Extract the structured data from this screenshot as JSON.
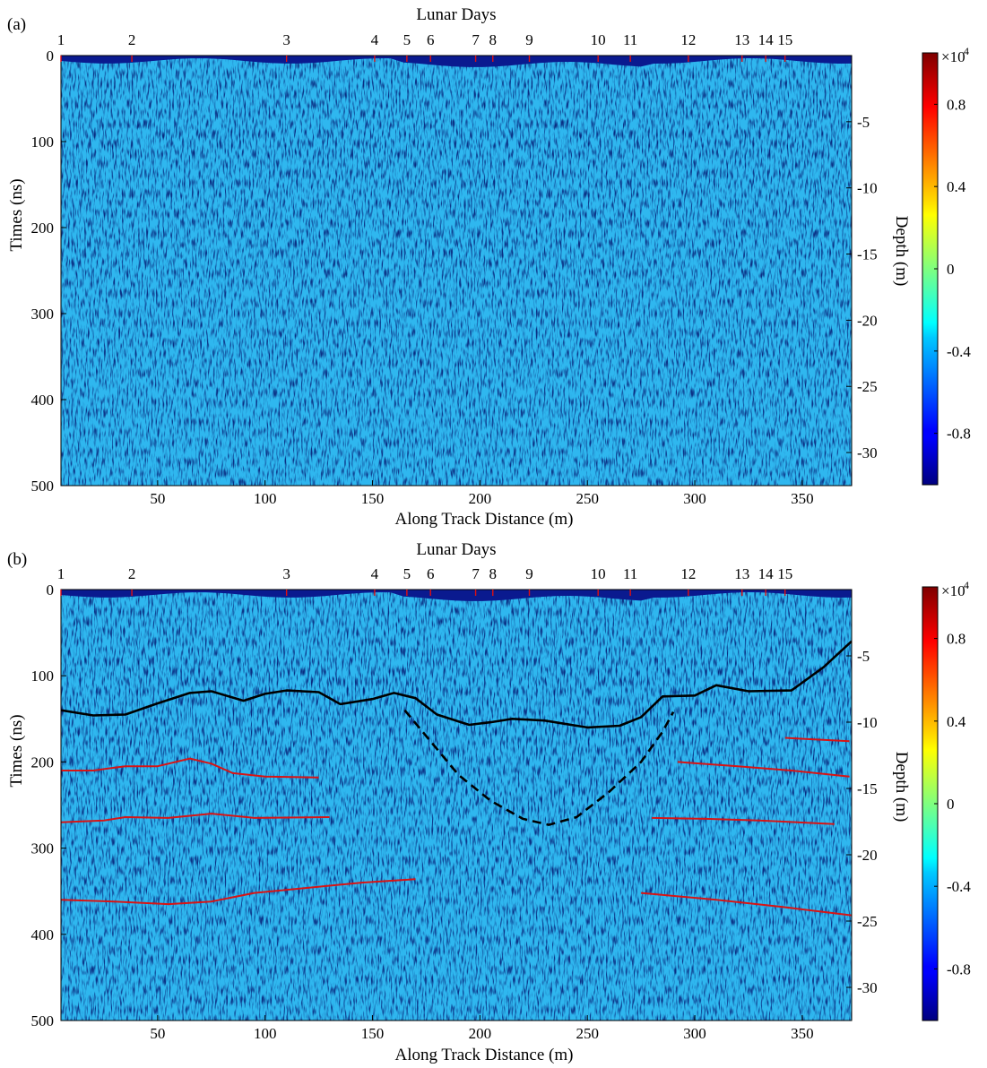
{
  "chart_data": [
    {
      "type": "heatmap",
      "panel_label": "(a)",
      "title": "",
      "top_axis_label": "Lunar Days",
      "xlabel": "Along Track Distance (m)",
      "ylabel": "Times (ns)",
      "right_axis_label": "Depth (m)",
      "xlim": [
        5,
        373
      ],
      "ylim": [
        0,
        500
      ],
      "depth_lim": [
        0,
        32.5
      ],
      "x_ticks": [
        50,
        100,
        150,
        200,
        250,
        300,
        350
      ],
      "y_ticks": [
        0,
        100,
        200,
        300,
        400,
        500
      ],
      "depth_ticks": [
        -5,
        -10,
        -15,
        -20,
        -25,
        -30
      ],
      "lunar_days": [
        {
          "label": "1",
          "x": 5
        },
        {
          "label": "2",
          "x": 38
        },
        {
          "label": "3",
          "x": 110
        },
        {
          "label": "4",
          "x": 151
        },
        {
          "label": "5",
          "x": 166
        },
        {
          "label": "6",
          "x": 177
        },
        {
          "label": "7",
          "x": 198
        },
        {
          "label": "8",
          "x": 206
        },
        {
          "label": "9",
          "x": 223
        },
        {
          "label": "10",
          "x": 255
        },
        {
          "label": "11",
          "x": 270
        },
        {
          "label": "12",
          "x": 297
        },
        {
          "label": "13",
          "x": 322
        },
        {
          "label": "14",
          "x": 333
        },
        {
          "label": "15",
          "x": 342
        }
      ],
      "colorbar": {
        "ticks": [
          0.8,
          0.4,
          0,
          -0.4,
          -0.8
        ],
        "multiplier": "×10",
        "exponent": "4",
        "range": [
          -1.05,
          1.05
        ],
        "colormap": "jet"
      },
      "interpreted_horizons": []
    },
    {
      "type": "heatmap",
      "panel_label": "(b)",
      "title": "",
      "top_axis_label": "Lunar Days",
      "xlabel": "Along Track Distance (m)",
      "ylabel": "Times (ns)",
      "right_axis_label": "Depth (m)",
      "xlim": [
        5,
        373
      ],
      "ylim": [
        0,
        500
      ],
      "depth_lim": [
        0,
        32.5
      ],
      "x_ticks": [
        50,
        100,
        150,
        200,
        250,
        300,
        350
      ],
      "y_ticks": [
        0,
        100,
        200,
        300,
        400,
        500
      ],
      "depth_ticks": [
        -5,
        -10,
        -15,
        -20,
        -25,
        -30
      ],
      "lunar_days": [
        {
          "label": "1",
          "x": 5
        },
        {
          "label": "2",
          "x": 38
        },
        {
          "label": "3",
          "x": 110
        },
        {
          "label": "4",
          "x": 151
        },
        {
          "label": "5",
          "x": 166
        },
        {
          "label": "6",
          "x": 177
        },
        {
          "label": "7",
          "x": 198
        },
        {
          "label": "8",
          "x": 206
        },
        {
          "label": "9",
          "x": 223
        },
        {
          "label": "10",
          "x": 255
        },
        {
          "label": "11",
          "x": 270
        },
        {
          "label": "12",
          "x": 297
        },
        {
          "label": "13",
          "x": 322
        },
        {
          "label": "14",
          "x": 333
        },
        {
          "label": "15",
          "x": 342
        }
      ],
      "colorbar": {
        "ticks": [
          0.8,
          0.4,
          0,
          -0.4,
          -0.8
        ],
        "multiplier": "×10",
        "exponent": "4",
        "range": [
          -1.05,
          1.05
        ],
        "colormap": "jet"
      },
      "interpreted_horizons": [
        {
          "kind": "solid",
          "color": "#000000",
          "points": [
            [
              5,
              140
            ],
            [
              20,
              146
            ],
            [
              35,
              145
            ],
            [
              50,
              132
            ],
            [
              65,
              120
            ],
            [
              75,
              118
            ],
            [
              90,
              129
            ],
            [
              100,
              121
            ],
            [
              110,
              117
            ],
            [
              125,
              119
            ],
            [
              135,
              133
            ],
            [
              150,
              127
            ],
            [
              160,
              120
            ],
            [
              170,
              126
            ],
            [
              180,
              145
            ],
            [
              195,
              157
            ],
            [
              205,
              154
            ],
            [
              215,
              150
            ],
            [
              230,
              152
            ],
            [
              250,
              160
            ],
            [
              265,
              158
            ],
            [
              275,
              148
            ],
            [
              285,
              124
            ],
            [
              300,
              123
            ],
            [
              310,
              111
            ],
            [
              325,
              118
            ],
            [
              345,
              117
            ],
            [
              360,
              90
            ],
            [
              373,
              60
            ]
          ]
        },
        {
          "kind": "dashed",
          "color": "#000000",
          "points": [
            [
              165,
              140
            ],
            [
              175,
              170
            ],
            [
              190,
              215
            ],
            [
              205,
              245
            ],
            [
              220,
              266
            ],
            [
              232,
              273
            ],
            [
              245,
              264
            ],
            [
              260,
              235
            ],
            [
              275,
              200
            ],
            [
              285,
              165
            ],
            [
              290,
              142
            ]
          ]
        },
        {
          "kind": "solid",
          "color": "#d81414",
          "points": [
            [
              5,
              210
            ],
            [
              20,
              210
            ],
            [
              35,
              205
            ],
            [
              50,
              205
            ],
            [
              65,
              196
            ],
            [
              75,
              202
            ],
            [
              85,
              213
            ],
            [
              100,
              217
            ],
            [
              125,
              218
            ]
          ]
        },
        {
          "kind": "solid",
          "color": "#d81414",
          "points": [
            [
              5,
              270
            ],
            [
              25,
              268
            ],
            [
              35,
              264
            ],
            [
              55,
              265
            ],
            [
              75,
              260
            ],
            [
              95,
              265
            ],
            [
              130,
              264
            ]
          ]
        },
        {
          "kind": "solid",
          "color": "#d81414",
          "points": [
            [
              5,
              360
            ],
            [
              30,
              362
            ],
            [
              55,
              365
            ],
            [
              75,
              362
            ],
            [
              95,
              352
            ],
            [
              120,
              346
            ],
            [
              145,
              340
            ],
            [
              170,
              336
            ]
          ]
        },
        {
          "kind": "solid",
          "color": "#d81414",
          "points": [
            [
              292,
              200
            ],
            [
              320,
              205
            ],
            [
              345,
              210
            ],
            [
              372,
              217
            ]
          ]
        },
        {
          "kind": "solid",
          "color": "#d81414",
          "points": [
            [
              342,
              172
            ],
            [
              372,
              176
            ]
          ]
        },
        {
          "kind": "solid",
          "color": "#d81414",
          "points": [
            [
              280,
              265
            ],
            [
              305,
              266
            ],
            [
              330,
              268
            ],
            [
              365,
              272
            ]
          ]
        },
        {
          "kind": "solid",
          "color": "#d81414",
          "points": [
            [
              275,
              352
            ],
            [
              310,
              360
            ],
            [
              340,
              368
            ],
            [
              373,
              378
            ]
          ]
        }
      ]
    }
  ]
}
